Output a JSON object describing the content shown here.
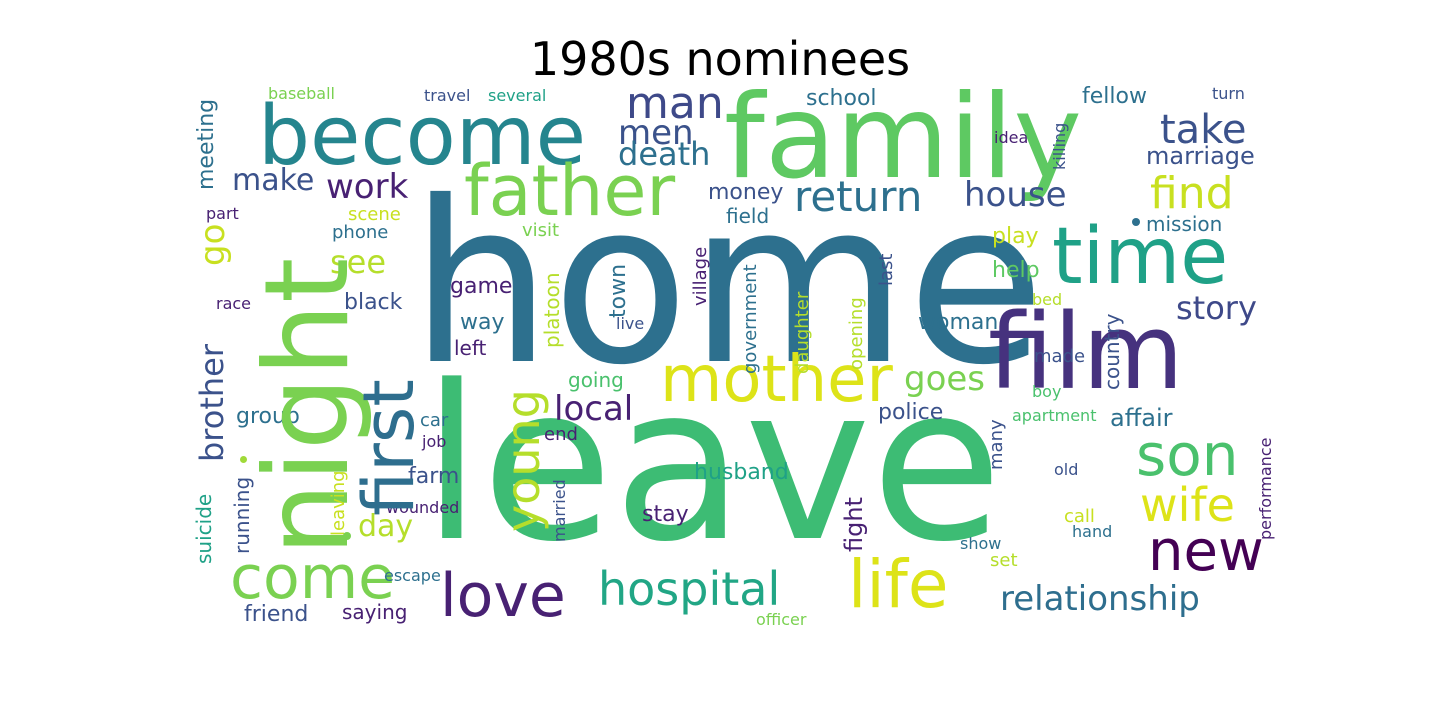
{
  "title": "1980s nominees",
  "palette": {
    "c1": "#440154",
    "c2": "#46327e",
    "c3": "#365c8d",
    "c4": "#277f8e",
    "c5": "#1fa187",
    "c6": "#4ac16d",
    "c7": "#a0da39",
    "c8": "#fde725",
    "c9": "#2d708e",
    "c10": "#3b528b",
    "c11": "#5ec962",
    "c12": "#c8e020",
    "c13": "#25858e",
    "c14": "#482173",
    "c15": "#3e4989",
    "c16": "#7ad151"
  },
  "words": [
    {
      "text": "home",
      "color": "#2d708e"
    },
    {
      "text": "leave",
      "color": "#3dbc74"
    },
    {
      "text": "family",
      "color": "#5ec962"
    },
    {
      "text": "become",
      "color": "#25858e"
    },
    {
      "text": "night",
      "color": "#7ad151"
    },
    {
      "text": "film",
      "color": "#46327e"
    },
    {
      "text": "time",
      "color": "#1fa187"
    },
    {
      "text": "father",
      "color": "#7ad151"
    },
    {
      "text": "mother",
      "color": "#dde318"
    },
    {
      "text": "first",
      "color": "#2e6e8e"
    },
    {
      "text": "come",
      "color": "#7ad151"
    },
    {
      "text": "love",
      "color": "#482173"
    },
    {
      "text": "life",
      "color": "#dde318"
    },
    {
      "text": "new",
      "color": "#440154"
    },
    {
      "text": "son",
      "color": "#4ac16d"
    },
    {
      "text": "hospital",
      "color": "#21a685"
    },
    {
      "text": "wife",
      "color": "#dde318"
    },
    {
      "text": "relationship",
      "color": "#2e6e8e"
    },
    {
      "text": "young",
      "color": "#b5de2b"
    },
    {
      "text": "man",
      "color": "#3e4989"
    },
    {
      "text": "men",
      "color": "#3b528b"
    },
    {
      "text": "death",
      "color": "#2d708e"
    },
    {
      "text": "take",
      "color": "#3b528b"
    },
    {
      "text": "marriage",
      "color": "#3b528b"
    },
    {
      "text": "return",
      "color": "#2d708e"
    },
    {
      "text": "find",
      "color": "#c8e020"
    },
    {
      "text": "house",
      "color": "#3b528b"
    },
    {
      "text": "make",
      "color": "#3b528b"
    },
    {
      "text": "work",
      "color": "#482173"
    },
    {
      "text": "see",
      "color": "#b5de2b"
    },
    {
      "text": "go",
      "color": "#c8e020"
    },
    {
      "text": "goes",
      "color": "#7ad151"
    },
    {
      "text": "story",
      "color": "#3e4989"
    },
    {
      "text": "local",
      "color": "#482173"
    },
    {
      "text": "day",
      "color": "#b5de2b"
    },
    {
      "text": "brother",
      "color": "#3b528b"
    },
    {
      "text": "school",
      "color": "#2d708e"
    },
    {
      "text": "fellow",
      "color": "#2d708e"
    },
    {
      "text": "baseball",
      "color": "#7ad151"
    },
    {
      "text": "travel",
      "color": "#3b528b"
    },
    {
      "text": "several",
      "color": "#1fa187"
    },
    {
      "text": "turn",
      "color": "#3b528b"
    },
    {
      "text": "idea",
      "color": "#482173"
    },
    {
      "text": "killing",
      "color": "#3b528b"
    },
    {
      "text": "meeting",
      "color": "#2d708e"
    },
    {
      "text": "money",
      "color": "#3b528b"
    },
    {
      "text": "field",
      "color": "#2d708e"
    },
    {
      "text": "scene",
      "color": "#c8e020"
    },
    {
      "text": "part",
      "color": "#482173"
    },
    {
      "text": "phone",
      "color": "#2d708e"
    },
    {
      "text": "visit",
      "color": "#7ad151"
    },
    {
      "text": "village",
      "color": "#482173"
    },
    {
      "text": "mission",
      "color": "#2d708e"
    },
    {
      "text": "play",
      "color": "#c8e020"
    },
    {
      "text": "help",
      "color": "#5ec962"
    },
    {
      "text": "last",
      "color": "#3b528b"
    },
    {
      "text": "bed",
      "color": "#b5de2b"
    },
    {
      "text": "country",
      "color": "#3b528b"
    },
    {
      "text": "race",
      "color": "#482173"
    },
    {
      "text": "black",
      "color": "#3b528b"
    },
    {
      "text": "game",
      "color": "#482173"
    },
    {
      "text": "way",
      "color": "#2d708e"
    },
    {
      "text": "left",
      "color": "#482173"
    },
    {
      "text": "town",
      "color": "#2d708e"
    },
    {
      "text": "platoon",
      "color": "#b5de2b"
    },
    {
      "text": "live",
      "color": "#3b528b"
    },
    {
      "text": "government",
      "color": "#2d708e"
    },
    {
      "text": "daughter",
      "color": "#b5de2b"
    },
    {
      "text": "opening",
      "color": "#b5de2b"
    },
    {
      "text": "woman",
      "color": "#2d708e"
    },
    {
      "text": "made",
      "color": "#3b528b"
    },
    {
      "text": "boy",
      "color": "#4ac16d"
    },
    {
      "text": "going",
      "color": "#4ac16d"
    },
    {
      "text": "police",
      "color": "#3b528b"
    },
    {
      "text": "apartment",
      "color": "#4ac16d"
    },
    {
      "text": "affair",
      "color": "#2d708e"
    },
    {
      "text": "group",
      "color": "#2d708e"
    },
    {
      "text": "car",
      "color": "#2d708e"
    },
    {
      "text": "job",
      "color": "#482173"
    },
    {
      "text": "end",
      "color": "#482173"
    },
    {
      "text": "many",
      "color": "#3b528b"
    },
    {
      "text": "performance",
      "color": "#482173"
    },
    {
      "text": "farm",
      "color": "#3b528b"
    },
    {
      "text": "husband",
      "color": "#1fa187"
    },
    {
      "text": "old",
      "color": "#3b528b"
    },
    {
      "text": "suicide",
      "color": "#1fa187"
    },
    {
      "text": "running",
      "color": "#3b528b"
    },
    {
      "text": "leaving",
      "color": "#c8e020"
    },
    {
      "text": "married",
      "color": "#3b528b"
    },
    {
      "text": "fight",
      "color": "#482173"
    },
    {
      "text": "wounded",
      "color": "#482173"
    },
    {
      "text": "stay",
      "color": "#482173"
    },
    {
      "text": "call",
      "color": "#c8e020"
    },
    {
      "text": "hand",
      "color": "#2d708e"
    },
    {
      "text": "show",
      "color": "#2d708e"
    },
    {
      "text": "set",
      "color": "#b5de2b"
    },
    {
      "text": "escape",
      "color": "#2d708e"
    },
    {
      "text": "friend",
      "color": "#3b528b"
    },
    {
      "text": "saying",
      "color": "#482173"
    },
    {
      "text": "officer",
      "color": "#7ad151"
    }
  ]
}
